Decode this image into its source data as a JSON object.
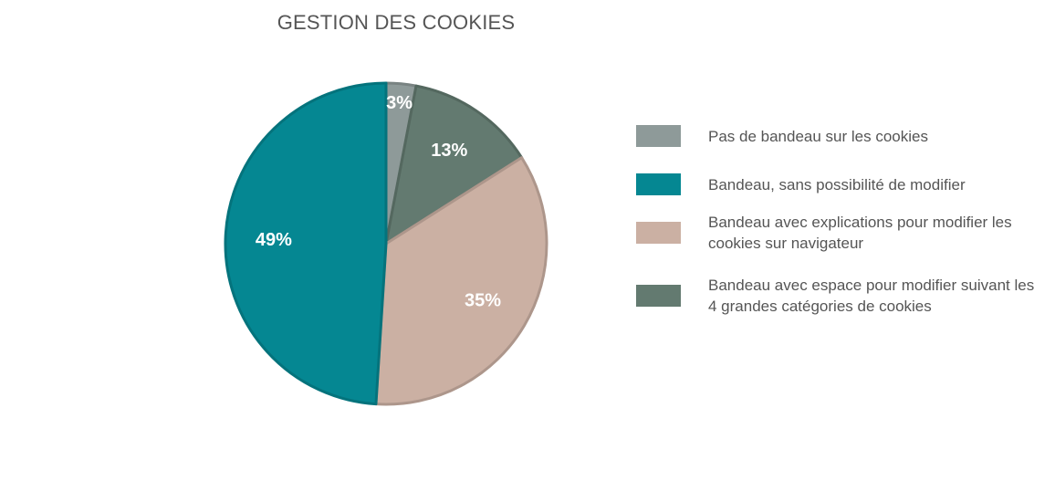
{
  "chart_data": {
    "type": "pie",
    "title": "GESTION DES COOKIES",
    "categories": [
      "Pas de bandeau sur les cookies",
      "Bandeau, sans possibilité de modifier",
      "Bandeau avec explications pour modifier les cookies sur navigateur",
      "Bandeau avec espace pour modifier suivant les 4 grandes catégories de cookies"
    ],
    "values": [
      3,
      49,
      35,
      13
    ],
    "value_labels": [
      "3%",
      "49%",
      "35%",
      "13%"
    ],
    "colors": [
      "#8e9a99",
      "#058792",
      "#cbb0a3",
      "#637a70"
    ],
    "legend_position": "right"
  }
}
